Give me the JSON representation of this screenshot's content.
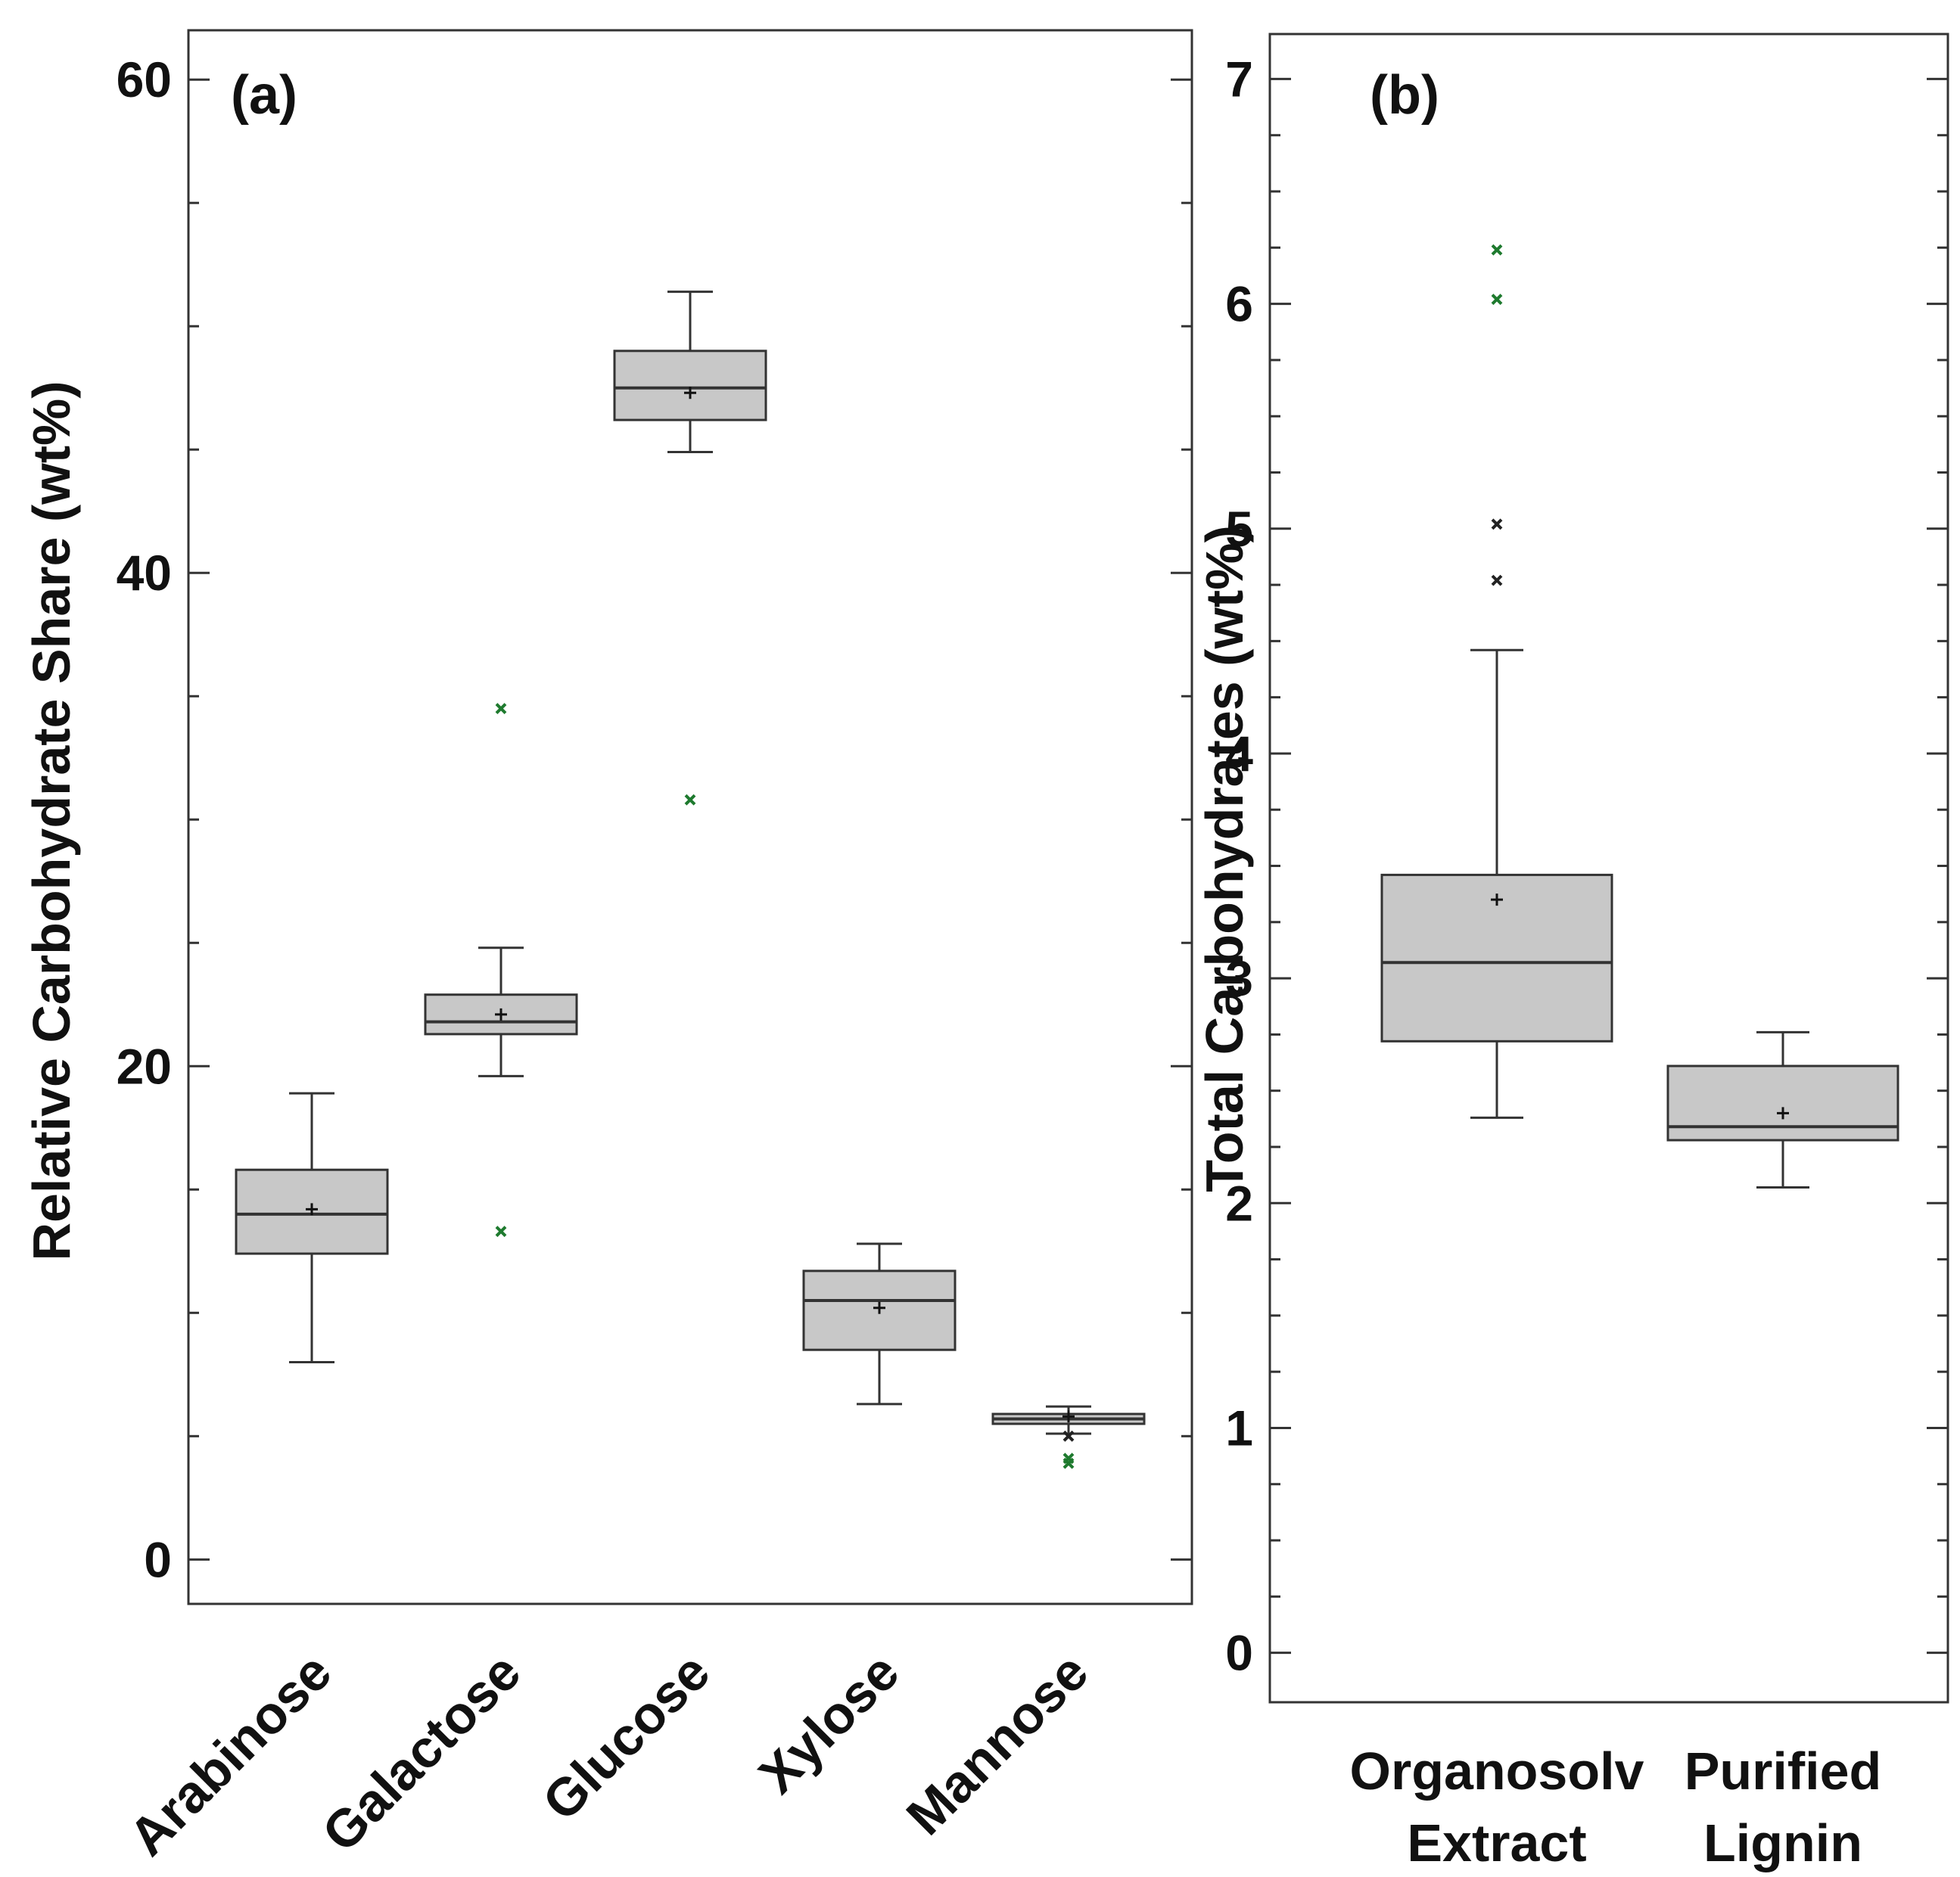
{
  "colors": {
    "box_fill": "#c8c8c8",
    "line": "#333333",
    "outlier_green": "#1e7a2e",
    "outlier_dark": "#222222"
  },
  "chart_data": [
    {
      "type": "box",
      "panel_label": "(a)",
      "xlabel": "",
      "ylabel": "Relative Carbohydrate Share (wt%)",
      "ylim": [
        -1.8,
        62
      ],
      "yticks": [
        0,
        20,
        40,
        60
      ],
      "yticks_minor_step": 5,
      "categories": [
        "Arabinose",
        "Galactose",
        "Glucose",
        "Xylose",
        "Mannose"
      ],
      "boxes": [
        {
          "name": "Arabinose",
          "whisker_low": 8,
          "q1": 12.4,
          "median": 14,
          "q3": 15.8,
          "whisker_high": 18.9,
          "mean": 14.2,
          "outliers": []
        },
        {
          "name": "Galactose",
          "whisker_low": 19.6,
          "q1": 21.3,
          "median": 21.8,
          "q3": 22.9,
          "whisker_high": 24.8,
          "mean": 22.1,
          "outliers": [
            {
              "value": 34.5,
              "color": "green"
            },
            {
              "value": 13.3,
              "color": "green"
            }
          ]
        },
        {
          "name": "Glucose",
          "whisker_low": 44.9,
          "q1": 46.2,
          "median": 47.5,
          "q3": 49,
          "whisker_high": 51.4,
          "mean": 47.3,
          "outliers": [
            {
              "value": 30.8,
              "color": "green"
            }
          ]
        },
        {
          "name": "Xylose",
          "whisker_low": 6.3,
          "q1": 8.5,
          "median": 10.5,
          "q3": 11.7,
          "whisker_high": 12.8,
          "mean": 10.2,
          "outliers": []
        },
        {
          "name": "Mannose",
          "whisker_low": 5.1,
          "q1": 5.5,
          "median": 5.7,
          "q3": 5.9,
          "whisker_high": 6.2,
          "mean": 5.8,
          "outliers": [
            {
              "value": 5.0,
              "color": "dark"
            },
            {
              "value": 4.1,
              "color": "green"
            },
            {
              "value": 3.9,
              "color": "green"
            }
          ]
        }
      ]
    },
    {
      "type": "box",
      "panel_label": "(b)",
      "xlabel": "",
      "ylabel": "Total Carbohydrates (wt%)",
      "ylim": [
        -0.22,
        7.2
      ],
      "yticks": [
        0,
        1,
        2,
        3,
        4,
        5,
        6,
        7
      ],
      "yticks_minor_step": 0.25,
      "categories": [
        "Organosolv Extract",
        "Purified Lignin"
      ],
      "category_lines": [
        [
          "Organosolv",
          "Extract"
        ],
        [
          "Purified",
          "Lignin"
        ]
      ],
      "boxes": [
        {
          "name": "Organosolv Extract",
          "whisker_low": 2.38,
          "q1": 2.72,
          "median": 3.07,
          "q3": 3.46,
          "whisker_high": 4.46,
          "mean": 3.35,
          "outliers": [
            {
              "value": 6.24,
              "color": "green"
            },
            {
              "value": 6.02,
              "color": "green"
            },
            {
              "value": 5.02,
              "color": "dark"
            },
            {
              "value": 4.77,
              "color": "dark"
            }
          ]
        },
        {
          "name": "Purified Lignin",
          "whisker_low": 2.07,
          "q1": 2.28,
          "median": 2.34,
          "q3": 2.61,
          "whisker_high": 2.76,
          "mean": 2.4,
          "outliers": []
        }
      ]
    }
  ]
}
